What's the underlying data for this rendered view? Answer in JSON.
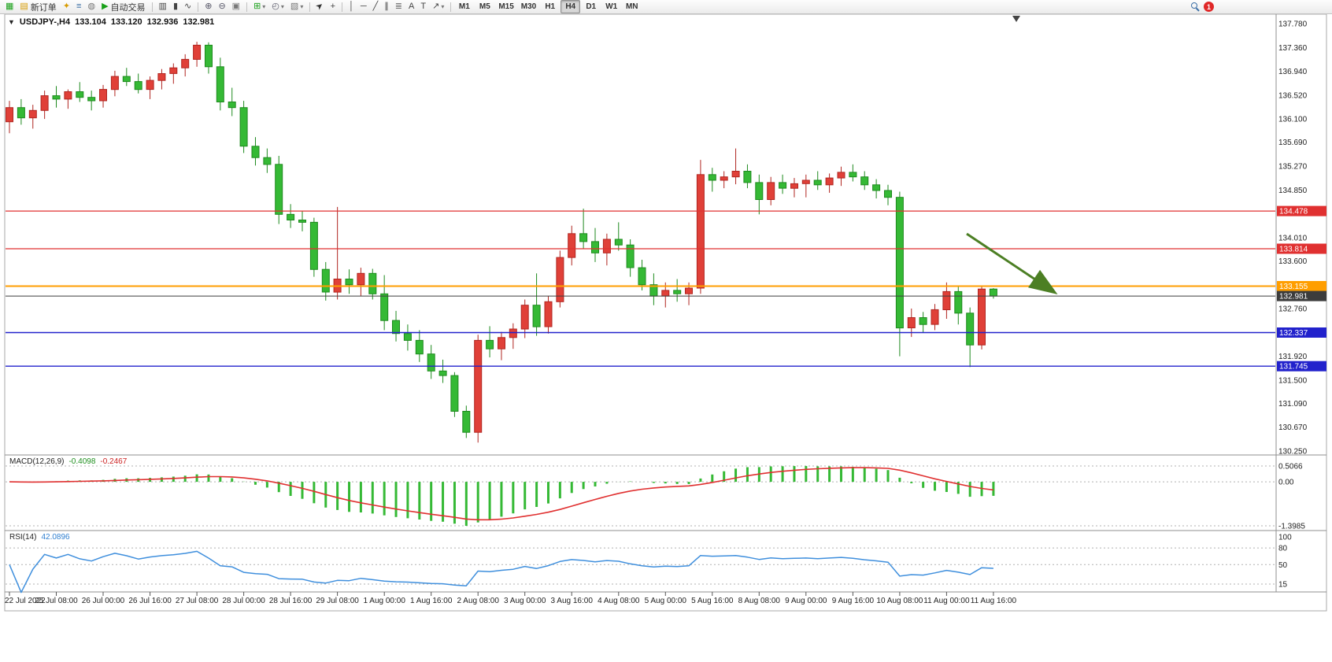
{
  "window": {
    "ohlc_title": {
      "symbol": "USDJPY-,H4",
      "open": "133.104",
      "high": "133.120",
      "low": "132.936",
      "close": "132.981"
    }
  },
  "toolbar": {
    "new_order_label": "新订单",
    "autotrading_label": "自动交易",
    "timeframes": [
      "M1",
      "M5",
      "M15",
      "M30",
      "H1",
      "H4",
      "D1",
      "W1",
      "MN"
    ],
    "active_timeframe": "H4",
    "notification_count": "1",
    "icons": {
      "new_chart": "▦",
      "new_order_ticket": "▤",
      "navigator": "✦",
      "market_watch": "≡",
      "data_window": "◍",
      "autotrading_play": "▶",
      "chart_bars": "▥",
      "chart_candles": "▮",
      "chart_line": "∿",
      "zoom_in": "⊕",
      "zoom_out": "⊖",
      "tile_windows": "▣",
      "indicators": "⊞",
      "periods": "◴",
      "templates": "▧",
      "cursor": "➤",
      "crosshair": "+",
      "vertical_line": "│",
      "horizontal_line": "─",
      "trendline": "╱",
      "channel": "∥",
      "fibonacci": "≣",
      "text_tool": "A",
      "label_tool": "T",
      "arrows_tool": "↗",
      "dropdown": "▾",
      "one_click": "▼"
    }
  },
  "chart_data": {
    "type": "candlestick",
    "symbol": "USDJPY-",
    "timeframe": "H4",
    "up_color": "#e04038",
    "up_edge": "#b02520",
    "down_color": "#35b935",
    "down_edge": "#1e8a1e",
    "price_axis": {
      "max": 137.78,
      "min": 130.25,
      "ticks": [
        "137.780",
        "137.360",
        "136.940",
        "136.520",
        "136.100",
        "135.690",
        "135.270",
        "134.850",
        "134.010",
        "133.600",
        "132.760",
        "131.920",
        "131.500",
        "131.090",
        "130.670",
        "130.250"
      ]
    },
    "levels": [
      {
        "price": 134.478,
        "label": "134.478",
        "color": "#e03030",
        "width": 1.2
      },
      {
        "price": 133.814,
        "label": "133.814",
        "color": "#e03030",
        "width": 1.2
      },
      {
        "price": 133.155,
        "label": "133.155",
        "color": "#ff9e00",
        "width": 2
      },
      {
        "price": 132.981,
        "label": "132.981",
        "color": "#3c3c3c",
        "width": 1
      },
      {
        "price": 132.337,
        "label": "132.337",
        "color": "#2222cc",
        "width": 1.4
      },
      {
        "price": 131.745,
        "label": "131.745",
        "color": "#2222cc",
        "width": 1.4
      }
    ],
    "time_labels": [
      "22 Jul 2022",
      "25 Jul 08:00",
      "26 Jul 00:00",
      "26 Jul 16:00",
      "27 Jul 08:00",
      "28 Jul 00:00",
      "28 Jul 16:00",
      "29 Jul 08:00",
      "1 Aug 00:00",
      "1 Aug 16:00",
      "2 Aug 08:00",
      "3 Aug 00:00",
      "3 Aug 16:00",
      "4 Aug 08:00",
      "5 Aug 00:00",
      "5 Aug 16:00",
      "8 Aug 08:00",
      "9 Aug 00:00",
      "9 Aug 16:00",
      "10 Aug 08:00",
      "11 Aug 00:00",
      "11 Aug 16:00"
    ],
    "candles": [
      [
        136.05,
        136.42,
        135.85,
        136.3
      ],
      [
        136.3,
        136.45,
        136.0,
        136.12
      ],
      [
        136.12,
        136.35,
        135.93,
        136.25
      ],
      [
        136.25,
        136.6,
        136.1,
        136.51
      ],
      [
        136.51,
        136.68,
        136.3,
        136.45
      ],
      [
        136.45,
        136.62,
        136.28,
        136.58
      ],
      [
        136.58,
        136.75,
        136.4,
        136.48
      ],
      [
        136.48,
        136.6,
        136.25,
        136.42
      ],
      [
        136.42,
        136.7,
        136.3,
        136.62
      ],
      [
        136.62,
        136.95,
        136.5,
        136.85
      ],
      [
        136.85,
        137.0,
        136.68,
        136.76
      ],
      [
        136.76,
        136.9,
        136.55,
        136.62
      ],
      [
        136.62,
        136.85,
        136.45,
        136.78
      ],
      [
        136.78,
        136.98,
        136.62,
        136.9
      ],
      [
        136.9,
        137.08,
        136.72,
        137.0
      ],
      [
        137.0,
        137.24,
        136.85,
        137.15
      ],
      [
        137.15,
        137.46,
        137.02,
        137.4
      ],
      [
        137.4,
        137.45,
        136.9,
        137.02
      ],
      [
        137.02,
        137.18,
        136.25,
        136.4
      ],
      [
        136.4,
        136.65,
        136.15,
        136.3
      ],
      [
        136.3,
        136.42,
        135.5,
        135.62
      ],
      [
        135.62,
        135.78,
        135.28,
        135.42
      ],
      [
        135.42,
        135.58,
        135.15,
        135.3
      ],
      [
        135.3,
        135.45,
        134.25,
        134.42
      ],
      [
        134.42,
        134.6,
        134.18,
        134.32
      ],
      [
        134.32,
        134.48,
        134.12,
        134.28
      ],
      [
        134.28,
        134.36,
        133.32,
        133.45
      ],
      [
        133.45,
        133.58,
        132.9,
        133.05
      ],
      [
        133.05,
        134.55,
        132.92,
        133.28
      ],
      [
        133.28,
        133.45,
        133.02,
        133.18
      ],
      [
        133.18,
        133.48,
        132.98,
        133.38
      ],
      [
        133.38,
        133.46,
        132.92,
        133.02
      ],
      [
        133.02,
        133.35,
        132.38,
        132.55
      ],
      [
        132.55,
        132.72,
        132.18,
        132.32
      ],
      [
        132.32,
        132.48,
        132.02,
        132.2
      ],
      [
        132.2,
        132.38,
        131.82,
        131.96
      ],
      [
        131.96,
        132.12,
        131.52,
        131.66
      ],
      [
        131.66,
        131.86,
        131.45,
        131.58
      ],
      [
        131.58,
        131.64,
        130.85,
        130.95
      ],
      [
        130.95,
        131.05,
        130.48,
        130.58
      ],
      [
        130.58,
        132.3,
        130.4,
        132.2
      ],
      [
        132.2,
        132.45,
        131.9,
        132.05
      ],
      [
        132.05,
        132.35,
        131.85,
        132.25
      ],
      [
        132.25,
        132.5,
        132.05,
        132.4
      ],
      [
        132.4,
        132.92,
        132.24,
        132.82
      ],
      [
        132.82,
        133.38,
        132.28,
        132.44
      ],
      [
        132.44,
        132.98,
        132.32,
        132.88
      ],
      [
        132.88,
        133.78,
        132.78,
        133.66
      ],
      [
        133.66,
        134.22,
        133.52,
        134.08
      ],
      [
        134.08,
        134.52,
        133.82,
        133.94
      ],
      [
        133.94,
        134.18,
        133.58,
        133.74
      ],
      [
        133.74,
        134.08,
        133.52,
        133.98
      ],
      [
        133.98,
        134.28,
        133.78,
        133.88
      ],
      [
        133.88,
        133.98,
        133.32,
        133.48
      ],
      [
        133.48,
        133.62,
        133.08,
        133.18
      ],
      [
        133.18,
        133.38,
        132.82,
        132.98
      ],
      [
        132.98,
        133.22,
        132.78,
        133.08
      ],
      [
        133.08,
        133.28,
        132.88,
        133.02
      ],
      [
        133.02,
        133.22,
        132.82,
        133.12
      ],
      [
        133.12,
        135.38,
        133.02,
        135.12
      ],
      [
        135.12,
        135.24,
        134.82,
        135.02
      ],
      [
        135.02,
        135.18,
        134.88,
        135.08
      ],
      [
        135.08,
        135.58,
        134.95,
        135.18
      ],
      [
        135.18,
        135.3,
        134.88,
        134.98
      ],
      [
        134.98,
        135.12,
        134.42,
        134.68
      ],
      [
        134.68,
        135.08,
        134.58,
        134.98
      ],
      [
        134.98,
        135.12,
        134.78,
        134.88
      ],
      [
        134.88,
        135.06,
        134.72,
        134.96
      ],
      [
        134.96,
        135.12,
        134.72,
        135.02
      ],
      [
        135.02,
        135.18,
        134.85,
        134.94
      ],
      [
        134.94,
        135.14,
        134.8,
        135.06
      ],
      [
        135.06,
        135.26,
        134.92,
        135.16
      ],
      [
        135.16,
        135.3,
        135.0,
        135.08
      ],
      [
        135.08,
        135.18,
        134.85,
        134.94
      ],
      [
        134.94,
        135.04,
        134.7,
        134.84
      ],
      [
        134.84,
        134.94,
        134.58,
        134.72
      ],
      [
        134.72,
        134.82,
        131.92,
        132.42
      ],
      [
        132.42,
        132.76,
        132.26,
        132.6
      ],
      [
        132.6,
        132.7,
        132.34,
        132.48
      ],
      [
        132.48,
        132.84,
        132.38,
        132.74
      ],
      [
        132.74,
        133.22,
        132.58,
        133.06
      ],
      [
        133.06,
        133.16,
        132.48,
        132.68
      ],
      [
        132.68,
        132.78,
        131.73,
        132.12
      ],
      [
        132.12,
        133.15,
        132.04,
        133.104
      ],
      [
        133.104,
        133.12,
        132.936,
        132.981
      ]
    ],
    "indicators": {
      "macd": {
        "label": "MACD(12,26,9)",
        "value": "-0.4098",
        "signal_value": "-0.2467",
        "scale": [
          "0.5066",
          "0.00",
          "-1.3985"
        ],
        "histogram_color": "#35b935",
        "signal_color": "#e03030"
      },
      "rsi": {
        "label": "RSI(14)",
        "value": "42.0896",
        "scale": [
          100,
          80,
          50,
          15
        ],
        "color": "#3f8fdd"
      }
    },
    "annotation_arrow": {
      "color": "#4c7f24"
    }
  }
}
